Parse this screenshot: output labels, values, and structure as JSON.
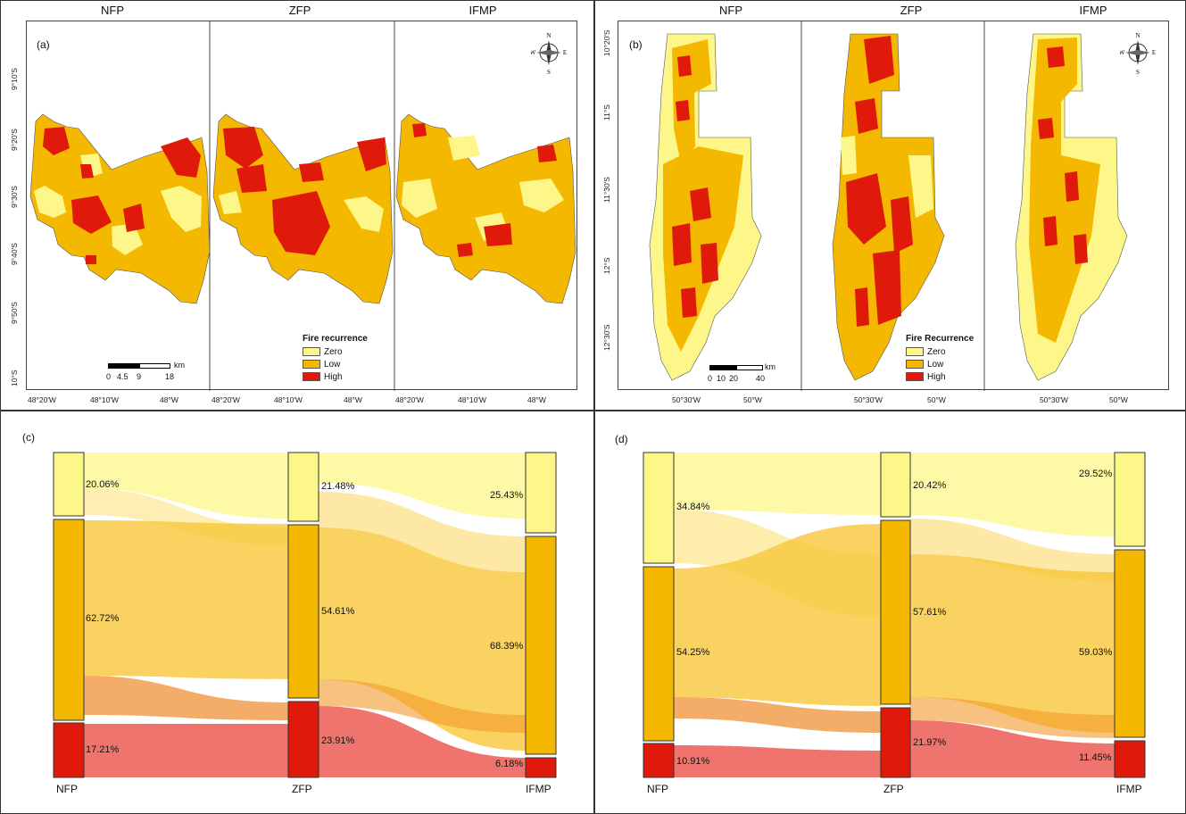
{
  "map_a": {
    "panel_label": "(a)",
    "titles": [
      "NFP",
      "ZFP",
      "IFMP"
    ],
    "lat_ticks": [
      "9°10'S",
      "9°20'S",
      "9°30'S",
      "9°40'S",
      "9°50'S",
      "10°S"
    ],
    "lon_ticks": [
      [
        "48°20'W",
        "48°10'W",
        "48°W"
      ],
      [
        "48°20'W",
        "48°10'W",
        "48°W"
      ],
      [
        "48°20'W",
        "48°10'W",
        "48°W"
      ]
    ],
    "legend_title": "Fire recurrence",
    "scale_labels": [
      "0",
      "4.5",
      "9",
      "18"
    ],
    "scale_unit": "km"
  },
  "map_b": {
    "panel_label": "(b)",
    "titles": [
      "NFP",
      "ZFP",
      "IFMP"
    ],
    "lat_ticks": [
      "10°20'S",
      "11°S",
      "11°30'S",
      "12°S",
      "12°30'S"
    ],
    "lon_ticks": [
      [
        "50°30'W",
        "50°W"
      ],
      [
        "50°30'W",
        "50°W"
      ],
      [
        "50°30'W",
        "50°W"
      ]
    ],
    "legend_title": "Fire Recurrence",
    "scale_labels": [
      "0",
      "10",
      "20",
      "40"
    ],
    "scale_unit": "km"
  },
  "legend_items": [
    "Zero",
    "Low",
    "High"
  ],
  "compass": {
    "n": "N",
    "s": "S",
    "e": "E",
    "w": "W"
  },
  "colors": {
    "zero": "#fdf78a",
    "low": "#f5b800",
    "high": "#e01a0a"
  },
  "sankey_c": {
    "panel_label": "(c)",
    "nodes": [
      "NFP",
      "ZFP",
      "IFMP"
    ],
    "values": [
      {
        "zero": "20.06%",
        "low": "62.72%",
        "high": "17.21%"
      },
      {
        "zero": "21.48%",
        "low": "54.61%",
        "high": "23.91%"
      },
      {
        "zero": "25.43%",
        "low": "68.39%",
        "high": "6.18%"
      }
    ]
  },
  "sankey_d": {
    "panel_label": "(d)",
    "nodes": [
      "NFP",
      "ZFP",
      "IFMP"
    ],
    "values": [
      {
        "zero": "34.84%",
        "low": "54.25%",
        "high": "10.91%"
      },
      {
        "zero": "20.42%",
        "low": "57.61%",
        "high": "21.97%"
      },
      {
        "zero": "29.52%",
        "low": "59.03%",
        "high": "11.45%"
      }
    ]
  }
}
